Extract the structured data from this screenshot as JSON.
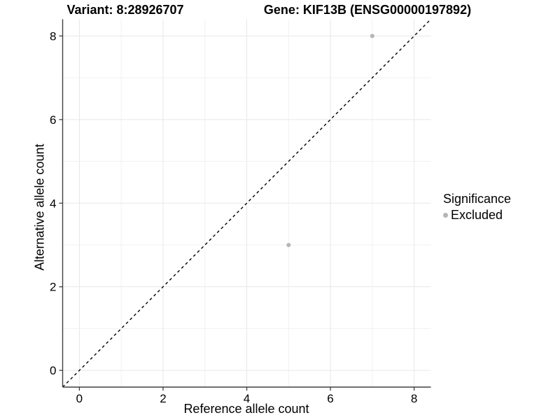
{
  "titles": {
    "left": "Variant: 8:28926707",
    "right": "Gene: KIF13B (ENSG00000197892)"
  },
  "chart_data": {
    "type": "scatter",
    "title_left": "Variant: 8:28926707",
    "title_right": "Gene: KIF13B (ENSG00000197892)",
    "xlabel": "Reference allele count",
    "ylabel": "Alternative allele count",
    "xlim": [
      -0.4,
      8.4
    ],
    "ylim": [
      -0.4,
      8.4
    ],
    "x_ticks": [
      0,
      2,
      4,
      6,
      8
    ],
    "y_ticks": [
      0,
      2,
      4,
      6,
      8
    ],
    "grid": "on",
    "minor_grid": "on",
    "points": [
      {
        "x": 7,
        "y": 8,
        "series": "Excluded"
      },
      {
        "x": 5,
        "y": 3,
        "series": "Excluded"
      }
    ],
    "reference_line": {
      "type": "identity y=x",
      "style": "dashed",
      "color": "#000000"
    },
    "legend": {
      "title": "Significance",
      "position": "right",
      "entries": [
        {
          "label": "Excluded",
          "color": "#b5b5b5"
        }
      ]
    }
  },
  "colors": {
    "point": "#b5b5b5",
    "grid_major": "#e7e7e7",
    "grid_minor": "#f1f1f1",
    "axis_line": "#404040",
    "background": "#ffffff"
  }
}
